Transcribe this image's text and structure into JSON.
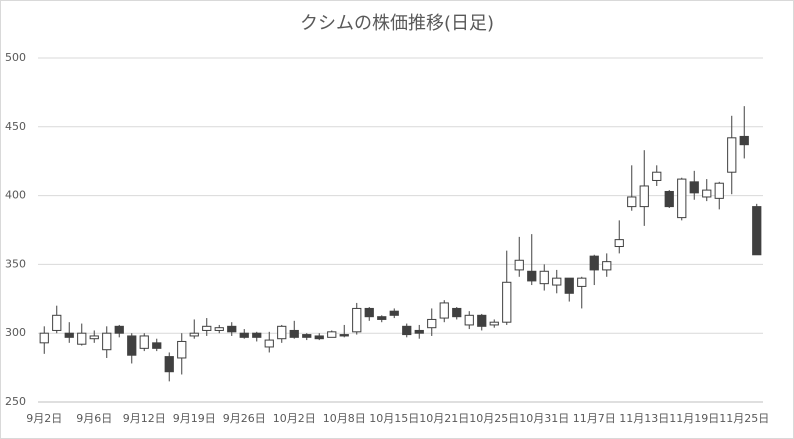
{
  "chart_data": {
    "type": "candlestick",
    "title": "クシムの株価推移(日足)",
    "categories": [
      "9月2日",
      null,
      null,
      null,
      "9月6日",
      null,
      null,
      null,
      "9月12日",
      null,
      null,
      null,
      "9月19日",
      null,
      null,
      null,
      "9月26日",
      null,
      null,
      null,
      "10月2日",
      null,
      null,
      null,
      "10月8日",
      null,
      null,
      null,
      "10月15日",
      null,
      null,
      null,
      "10月21日",
      null,
      null,
      null,
      "10月25日",
      null,
      null,
      null,
      "10月31日",
      null,
      null,
      null,
      "11月7日",
      null,
      null,
      null,
      "11月13日",
      null,
      null,
      null,
      "11月19日",
      null,
      null,
      null,
      "11月25日",
      null
    ],
    "open": [
      293,
      302,
      300,
      292,
      296,
      288,
      305,
      298,
      289,
      293,
      283,
      282,
      298,
      302,
      302,
      305,
      300,
      300,
      290,
      296,
      302,
      299,
      298,
      297,
      299,
      301,
      318,
      312,
      316,
      305,
      302,
      304,
      311,
      318,
      306,
      313,
      306,
      308,
      346,
      345,
      336,
      335,
      340,
      334,
      356,
      346,
      363,
      392,
      392,
      411,
      403,
      384,
      410,
      399,
      398,
      417,
      443,
      392
    ],
    "high": [
      305,
      320,
      308,
      307,
      302,
      305,
      306,
      300,
      300,
      296,
      286,
      300,
      310,
      311,
      306,
      308,
      303,
      301,
      301,
      306,
      309,
      300,
      300,
      302,
      306,
      322,
      319,
      313,
      318,
      307,
      306,
      318,
      324,
      319,
      316,
      314,
      310,
      360,
      370,
      372,
      350,
      346,
      340,
      341,
      357,
      358,
      382,
      422,
      433,
      422,
      404,
      413,
      418,
      412,
      410,
      458,
      465,
      394
    ],
    "low": [
      285,
      300,
      293,
      291,
      293,
      282,
      297,
      278,
      287,
      287,
      265,
      270,
      296,
      298,
      300,
      298,
      296,
      294,
      286,
      293,
      296,
      295,
      295,
      297,
      297,
      299,
      309,
      308,
      311,
      297,
      296,
      298,
      308,
      310,
      303,
      302,
      304,
      306,
      341,
      335,
      331,
      329,
      323,
      318,
      335,
      341,
      358,
      389,
      378,
      407,
      391,
      382,
      397,
      396,
      390,
      401,
      427,
      357
    ],
    "close": [
      300,
      313,
      297,
      300,
      298,
      300,
      300,
      284,
      298,
      289,
      272,
      294,
      300,
      305,
      304,
      301,
      297,
      297,
      295,
      305,
      297,
      297,
      296,
      301,
      298,
      318,
      312,
      310,
      313,
      299,
      300,
      310,
      322,
      312,
      313,
      305,
      308,
      337,
      353,
      338,
      345,
      340,
      329,
      340,
      346,
      352,
      368,
      399,
      407,
      417,
      392,
      412,
      402,
      404,
      409,
      442,
      437,
      357
    ],
    "up_color": "#ffffff",
    "down_color": "#404040",
    "line_color": "#404040",
    "ylim": [
      250,
      500
    ],
    "yticks": [
      250,
      300,
      350,
      400,
      450,
      500
    ],
    "grid": true
  }
}
